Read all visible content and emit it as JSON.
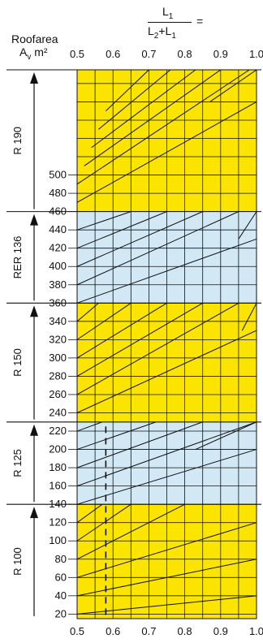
{
  "chart_data": {
    "type": "line",
    "formula": {
      "numerator": "L",
      "numerator_sub": "1",
      "denominator_a": "L",
      "denominator_a_sub": "2",
      "denominator_plus": "+",
      "denominator_b": "L",
      "denominator_b_sub": "1",
      "equals": "="
    },
    "ylabel_line1": "Roofarea",
    "ylabel_line2_main": "A",
    "ylabel_line2_sub": "v",
    "ylabel_line2_unit": " m²",
    "x_tick_labels": [
      "0.5",
      "0.6",
      "0.7",
      "0.8",
      "0.9",
      "1.0"
    ],
    "x_ticks": [
      0.5,
      0.6,
      0.7,
      0.8,
      0.9,
      1.0
    ],
    "xlim": [
      0.5,
      1.0
    ],
    "y_tick_labels": [
      "20",
      "40",
      "60",
      "80",
      "100",
      "120",
      "140",
      "160",
      "180",
      "200",
      "220",
      "240",
      "260",
      "280",
      "300",
      "320",
      "340",
      "360",
      "380",
      "400",
      "420",
      "440",
      "460",
      "480",
      "500"
    ],
    "y_ticks": [
      20,
      40,
      60,
      80,
      100,
      120,
      140,
      160,
      180,
      200,
      220,
      240,
      260,
      280,
      300,
      320,
      340,
      360,
      380,
      400,
      420,
      440,
      460,
      480,
      500
    ],
    "zones": [
      {
        "label": "R 100",
        "from": 15,
        "to": 140,
        "color": "#fbe500"
      },
      {
        "label": "R 125",
        "from": 140,
        "to": 230,
        "color": "#d2e8f5"
      },
      {
        "label": "R 150",
        "from": 230,
        "to": 360,
        "color": "#fbe500"
      },
      {
        "label": "RER 136",
        "from": 360,
        "to": 460,
        "color": "#d2e8f5"
      },
      {
        "label": "R 190",
        "from": 460,
        "to": 615,
        "color": "#fbe500"
      }
    ],
    "dashed_marker_x": 0.58,
    "line_segments": [
      [
        0.5,
        20,
        1.0,
        40
      ],
      [
        0.5,
        40,
        1.0,
        80
      ],
      [
        0.5,
        60,
        1.0,
        120
      ],
      [
        0.5,
        80,
        0.8,
        140
      ],
      [
        0.5,
        100,
        0.65,
        140
      ],
      [
        0.5,
        120,
        0.57,
        140
      ],
      [
        0.5,
        140,
        1.0,
        200
      ],
      [
        0.5,
        160,
        1.0,
        230
      ],
      [
        0.5,
        180,
        0.85,
        230
      ],
      [
        0.5,
        200,
        0.72,
        230
      ],
      [
        0.5,
        220,
        0.57,
        230
      ],
      [
        0.5,
        240,
        1.0,
        330
      ],
      [
        0.5,
        260,
        0.95,
        360
      ],
      [
        0.5,
        280,
        0.85,
        360
      ],
      [
        0.5,
        300,
        0.75,
        360
      ],
      [
        0.5,
        320,
        0.65,
        360
      ],
      [
        0.5,
        340,
        0.56,
        360
      ],
      [
        0.5,
        360,
        1.0,
        430
      ],
      [
        0.5,
        380,
        0.95,
        460
      ],
      [
        0.5,
        400,
        0.85,
        460
      ],
      [
        0.5,
        420,
        0.75,
        460
      ],
      [
        0.5,
        440,
        0.65,
        460
      ],
      [
        0.5,
        470,
        1.0,
        580
      ],
      [
        0.5,
        490,
        0.98,
        615
      ],
      [
        0.52,
        510,
        0.9,
        615
      ],
      [
        0.54,
        530,
        0.83,
        615
      ],
      [
        0.56,
        550,
        0.76,
        615
      ],
      [
        0.58,
        570,
        0.7,
        615
      ],
      [
        0.95,
        430,
        1.0,
        460
      ],
      [
        0.87,
        580,
        1.0,
        615
      ],
      [
        0.96,
        330,
        1.0,
        360
      ],
      [
        0.83,
        200,
        1.0,
        230
      ]
    ]
  },
  "colors": {
    "yellow": "#fbe500",
    "blue": "#d2e8f5",
    "ink": "#111111"
  }
}
